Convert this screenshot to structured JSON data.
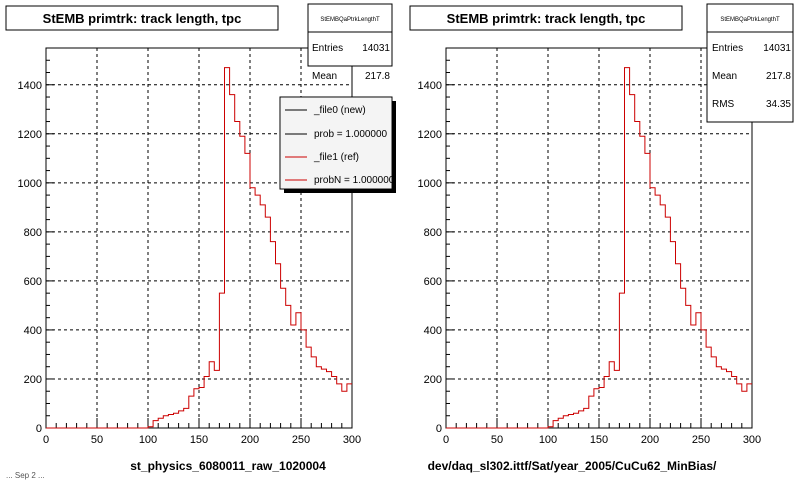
{
  "footer_fragment": "... Sep 2 ...",
  "chart_data": [
    {
      "type": "step-histogram",
      "title": "StEMB primtrk: track length, tpc",
      "xlabel": "st_physics_6080011_raw_1020004",
      "xlim": [
        0,
        300
      ],
      "ylim": [
        0,
        1550
      ],
      "x_ticks": [
        "0",
        "50",
        "100",
        "150",
        "200",
        "250",
        "300"
      ],
      "y_ticks": [
        "0",
        "200",
        "400",
        "600",
        "800",
        "1000",
        "1200",
        "1400"
      ],
      "grid": true,
      "stats": {
        "name": "StEMBQaPtrkLengthT",
        "rows": [
          {
            "label": "Entries",
            "value": "14031"
          },
          {
            "label": "Mean",
            "value": "217.8"
          }
        ]
      },
      "legend": {
        "placement": "top-right",
        "entries": [
          {
            "label": "_file0 (new)",
            "color": "#000000"
          },
          {
            "label": "prob = 1.000000",
            "color": "#000000"
          },
          {
            "label": "_file1 (ref)",
            "color": "#cc0000"
          },
          {
            "label": "probN = 1.000000",
            "color": "#cc0000"
          }
        ]
      },
      "series": [
        {
          "color": "#cc0000",
          "bin_width": 5,
          "x": [
            0,
            5,
            10,
            15,
            20,
            25,
            30,
            35,
            40,
            45,
            50,
            55,
            60,
            65,
            70,
            75,
            80,
            85,
            90,
            95,
            100,
            105,
            110,
            115,
            120,
            125,
            130,
            135,
            140,
            145,
            150,
            155,
            160,
            165,
            170,
            175,
            180,
            185,
            190,
            195,
            200,
            205,
            210,
            215,
            220,
            225,
            230,
            235,
            240,
            245,
            250,
            255,
            260,
            265,
            270,
            275,
            280,
            285,
            290,
            295
          ],
          "values": [
            0,
            0,
            0,
            0,
            0,
            0,
            0,
            0,
            0,
            0,
            0,
            0,
            0,
            0,
            0,
            0,
            0,
            0,
            0,
            0,
            5,
            30,
            40,
            50,
            55,
            60,
            70,
            80,
            130,
            160,
            165,
            210,
            270,
            235,
            550,
            1470,
            1360,
            1250,
            1190,
            1120,
            980,
            950,
            910,
            860,
            760,
            670,
            570,
            500,
            420,
            470,
            400,
            330,
            290,
            250,
            240,
            230,
            210,
            180,
            150,
            180
          ]
        }
      ]
    },
    {
      "type": "step-histogram",
      "title": "StEMB primtrk: track length, tpc",
      "xlabel": "dev/daq_sl302.ittf/Sat/year_2005/CuCu62_MinBias/",
      "xlim": [
        0,
        300
      ],
      "ylim": [
        0,
        1550
      ],
      "x_ticks": [
        "0",
        "50",
        "100",
        "150",
        "200",
        "250",
        "300"
      ],
      "y_ticks": [
        "0",
        "200",
        "400",
        "600",
        "800",
        "1000",
        "1200",
        "1400"
      ],
      "grid": true,
      "stats": {
        "name": "StEMBQaPtrkLengthT",
        "rows": [
          {
            "label": "Entries",
            "value": "14031"
          },
          {
            "label": "Mean",
            "value": "217.8"
          },
          {
            "label": "RMS",
            "value": "34.35"
          }
        ]
      },
      "series": [
        {
          "color": "#cc0000",
          "bin_width": 5,
          "x": [
            0,
            5,
            10,
            15,
            20,
            25,
            30,
            35,
            40,
            45,
            50,
            55,
            60,
            65,
            70,
            75,
            80,
            85,
            90,
            95,
            100,
            105,
            110,
            115,
            120,
            125,
            130,
            135,
            140,
            145,
            150,
            155,
            160,
            165,
            170,
            175,
            180,
            185,
            190,
            195,
            200,
            205,
            210,
            215,
            220,
            225,
            230,
            235,
            240,
            245,
            250,
            255,
            260,
            265,
            270,
            275,
            280,
            285,
            290,
            295
          ],
          "values": [
            0,
            0,
            0,
            0,
            0,
            0,
            0,
            0,
            0,
            0,
            0,
            0,
            0,
            0,
            0,
            0,
            0,
            0,
            0,
            0,
            5,
            30,
            40,
            50,
            55,
            60,
            70,
            80,
            130,
            160,
            165,
            210,
            270,
            235,
            550,
            1470,
            1360,
            1250,
            1190,
            1120,
            980,
            950,
            910,
            860,
            760,
            670,
            570,
            500,
            420,
            470,
            400,
            330,
            290,
            250,
            240,
            230,
            210,
            180,
            150,
            180
          ]
        }
      ]
    }
  ]
}
